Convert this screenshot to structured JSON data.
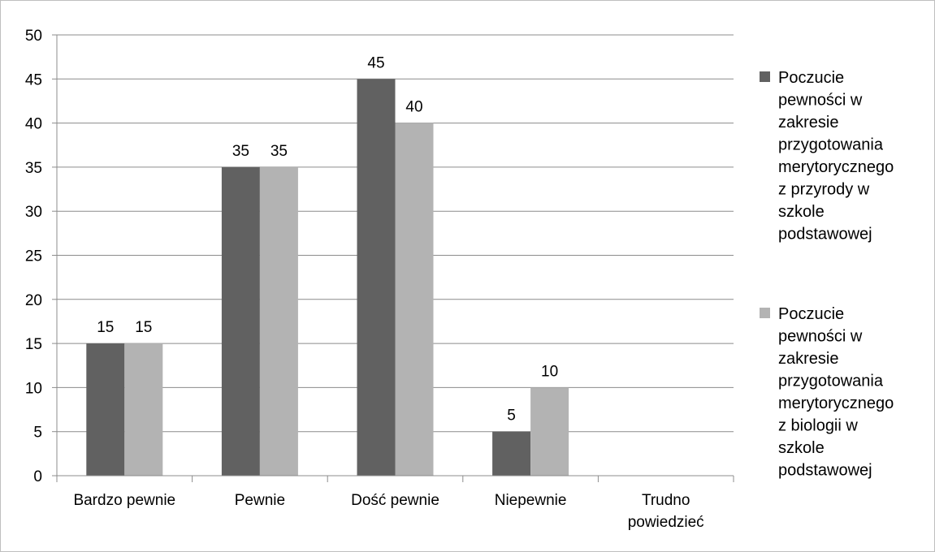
{
  "chart_data": {
    "type": "bar",
    "title": "",
    "xlabel": "",
    "ylabel": "",
    "ylim": [
      0,
      50
    ],
    "yticks": [
      0,
      5,
      10,
      15,
      20,
      25,
      30,
      35,
      40,
      45,
      50
    ],
    "grid": true,
    "legend_position": "right",
    "categories": [
      [
        "Bardzo pewnie"
      ],
      [
        "Pewnie"
      ],
      [
        "Dość pewnie"
      ],
      [
        "Niepewnie"
      ],
      [
        "Trudno",
        "powiedzieć"
      ]
    ],
    "series": [
      {
        "name_lines": [
          "Poczucie",
          "pewności w",
          "zakresie",
          "przygotowania",
          "merytorycznego",
          "z przyrody w",
          "szkole",
          "podstawowej"
        ],
        "color": "#616161",
        "values": [
          15,
          35,
          45,
          5,
          null
        ]
      },
      {
        "name_lines": [
          "Poczucie",
          "pewności w",
          "zakresie",
          "przygotowania",
          "merytorycznego",
          "z biologii w",
          "szkole",
          "podstawowej"
        ],
        "color": "#b3b3b3",
        "values": [
          15,
          35,
          40,
          10,
          null
        ]
      }
    ],
    "colors": {
      "grid": "#8c8c8c",
      "axis": "#8c8c8c"
    }
  }
}
